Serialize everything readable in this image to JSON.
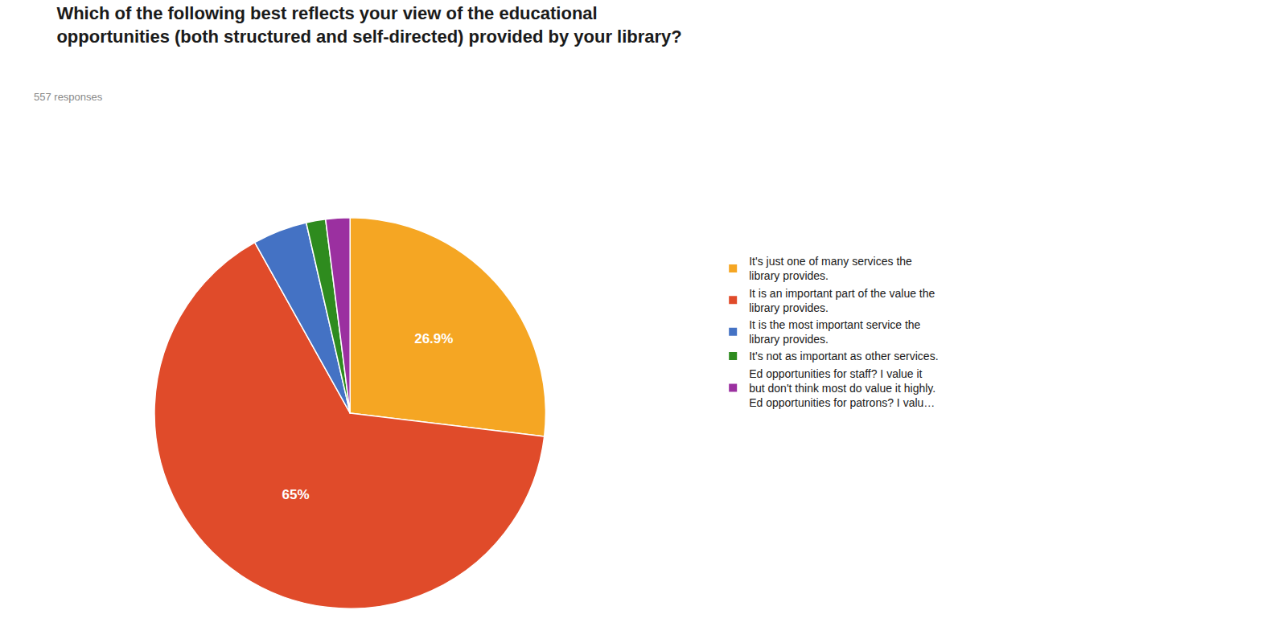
{
  "chart_data": {
    "type": "pie",
    "title": "Which of the following best reflects your view of the educational\nopportunities (both structured and self-directed) provided by your library?",
    "subtitle": "557 responses",
    "categories": [
      "It's just one of many services the\nlibrary provides.",
      "It is an important part of the value the\nlibrary provides.",
      "It is the most important service the\nlibrary provides.",
      "It's not as important as other services.",
      "Ed opportunities for staff? I value it\nbut don't think most do value it highly.\nEd opportunities for patrons? I valu…"
    ],
    "values": [
      26.9,
      65.0,
      4.5,
      1.6,
      2.0
    ],
    "value_labels": [
      "26.9%",
      "65%",
      null,
      null,
      null
    ],
    "colors": [
      "#F5A623",
      "#E04B2A",
      "#4472C4",
      "#2E8B1E",
      "#9B30A0"
    ],
    "data_labels": true,
    "legend": "right"
  }
}
